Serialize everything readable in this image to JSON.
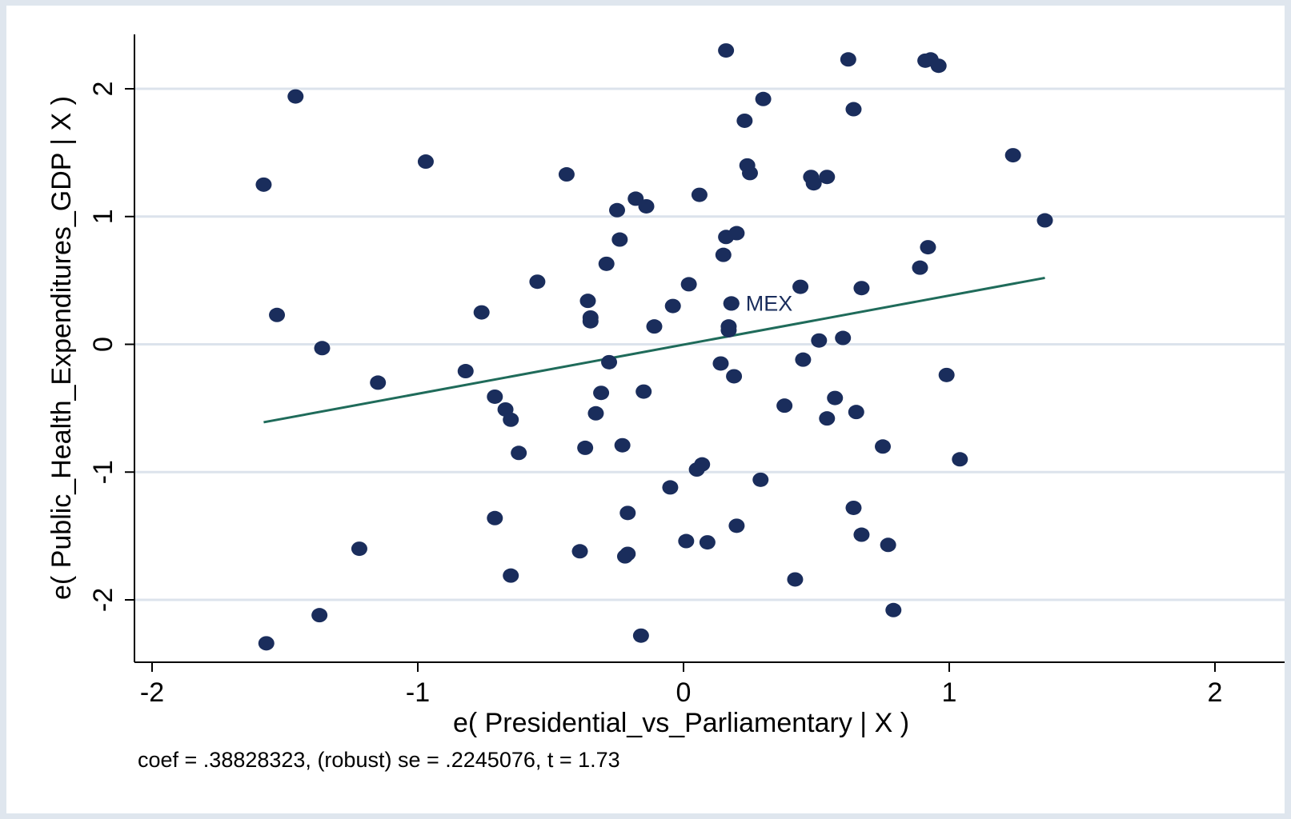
{
  "chart_data": {
    "type": "scatter",
    "xlabel": "e( Presidential_vs_Parliamentary | X )",
    "ylabel": "e( Public_Health_Expenditures_GDP | X )",
    "note": "coef = .38828323, (robust) se = .2245076, t = 1.73",
    "xlim": [
      -2.08,
      2.08
    ],
    "ylim": [
      -2.47,
      2.42
    ],
    "xticks": [
      -2,
      -1,
      0,
      1,
      2
    ],
    "xtick_labels": [
      "-2",
      "-1",
      "0",
      "1",
      "2"
    ],
    "yticks": [
      -2,
      -1,
      0,
      1,
      2
    ],
    "ytick_labels": [
      "-2",
      "-1",
      "0",
      "1",
      "2"
    ],
    "grid": "horizontal",
    "colors": {
      "points": "#1a2d5c",
      "fit_line": "#1f6b5a",
      "grid": "#dce3ec",
      "background": "#dfe6ee"
    },
    "fit_line": {
      "x": [
        -1.58,
        1.36
      ],
      "y": [
        -0.61,
        0.52
      ]
    },
    "labeled_point": {
      "label": "MEX",
      "x": 0.18,
      "y": 0.32
    },
    "points": {
      "x": [
        0.16,
        0.62,
        0.91,
        0.93,
        0.96,
        -1.46,
        0.3,
        0.64,
        0.23,
        -1.58,
        -0.97,
        1.24,
        -0.44,
        0.24,
        0.25,
        0.48,
        0.49,
        0.54,
        0.06,
        -0.18,
        -0.25,
        -0.14,
        1.36,
        0.16,
        0.2,
        -0.24,
        0.15,
        0.92,
        -0.29,
        0.89,
        -0.55,
        0.02,
        0.44,
        0.67,
        0.18,
        -0.36,
        -0.04,
        -1.53,
        -0.76,
        -0.35,
        -0.35,
        0.17,
        0.17,
        -0.11,
        -1.36,
        0.6,
        0.51,
        0.14,
        0.45,
        -0.28,
        -0.82,
        0.19,
        -1.15,
        0.99,
        -0.15,
        -0.31,
        -0.71,
        0.57,
        0.38,
        -0.67,
        0.65,
        -0.33,
        0.54,
        -0.65,
        -0.37,
        -0.23,
        0.75,
        -0.62,
        1.04,
        0.07,
        0.05,
        0.29,
        -0.05,
        0.64,
        -0.71,
        -0.21,
        0.2,
        0.67,
        0.01,
        0.09,
        0.77,
        -1.22,
        -0.39,
        -0.21,
        -0.22,
        -0.65,
        0.42,
        -1.37,
        0.79,
        -0.16,
        -1.57
      ],
      "y": [
        2.3,
        2.23,
        2.22,
        2.23,
        2.18,
        1.94,
        1.92,
        1.84,
        1.75,
        1.25,
        1.43,
        1.48,
        1.33,
        1.4,
        1.34,
        1.31,
        1.26,
        1.31,
        1.17,
        1.14,
        1.05,
        1.08,
        0.97,
        0.84,
        0.87,
        0.82,
        0.7,
        0.76,
        0.63,
        0.6,
        0.49,
        0.47,
        0.45,
        0.44,
        0.32,
        0.34,
        0.3,
        0.23,
        0.25,
        0.21,
        0.18,
        0.14,
        0.11,
        0.14,
        -0.03,
        0.05,
        0.03,
        -0.15,
        -0.12,
        -0.14,
        -0.21,
        -0.25,
        -0.3,
        -0.24,
        -0.37,
        -0.38,
        -0.41,
        -0.42,
        -0.48,
        -0.51,
        -0.53,
        -0.54,
        -0.58,
        -0.59,
        -0.81,
        -0.79,
        -0.8,
        -0.85,
        -0.9,
        -0.94,
        -0.98,
        -1.06,
        -1.12,
        -1.28,
        -1.36,
        -1.32,
        -1.42,
        -1.49,
        -1.54,
        -1.55,
        -1.57,
        -1.6,
        -1.62,
        -1.64,
        -1.66,
        -1.81,
        -1.84,
        -2.12,
        -2.08,
        -2.28,
        -2.34
      ]
    }
  }
}
